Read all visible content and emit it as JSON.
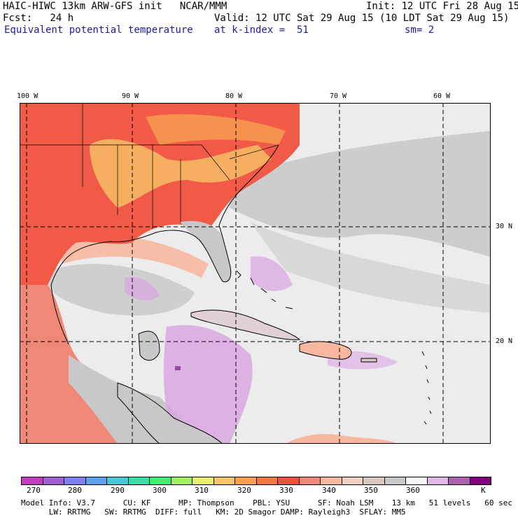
{
  "header": {
    "line1_left": "HAIC-HIWC 13km ARW-GFS init   NCAR/MMM",
    "line1_right": "Init: 12 UTC Fri 28 Aug 15",
    "line2_left": "Fcst:   24 h",
    "line2_right": "Valid: 12 UTC Sat 29 Aug 15 (10 LDT Sat 29 Aug 15)",
    "line3_left": "Equivalent potential temperature",
    "line3_mid": "at k-index =  51",
    "line3_right": "sm= 2"
  },
  "map": {
    "lon_labels": [
      "100 W",
      "90 W",
      "80 W",
      "70 W",
      "60 W"
    ],
    "lat_labels": [
      "30 N",
      "20 N"
    ],
    "colors": {
      "land_warm": "#f05a46",
      "land_hot": "#f8c468",
      "ocean": "#ececec",
      "ocean_gray": "#c8c8c8",
      "purple": "#d8a8e0",
      "dark_purple": "#9a48a8"
    }
  },
  "colorbar": {
    "colors": [
      "#c23cc2",
      "#a060d0",
      "#7f7fef",
      "#5fa0ef",
      "#47c8d8",
      "#38e0a8",
      "#40ef6f",
      "#a0f060",
      "#e8f070",
      "#f8c468",
      "#f8a050",
      "#f07840",
      "#ef503c",
      "#f08878",
      "#f8b8a0",
      "#f0d0c0",
      "#d8c8c0",
      "#c8c8c8",
      "#f8f8f8",
      "#e0b8e8",
      "#b060b0",
      "#800080"
    ],
    "ticks": [
      "270",
      "280",
      "290",
      "300",
      "310",
      "320",
      "330",
      "340",
      "350",
      "360",
      "K"
    ]
  },
  "footer": {
    "line1": "Model Info: V3.7      CU: KF      MP: Thompson    PBL: YSU      SF: Noah LSM    13 km   51 levels   60 sec",
    "line2": "      LW: RRTMG   SW: RRTMG  DIFF: full   KM: 2D Smagor DAMP: Rayleigh3  SFLAY: MM5"
  }
}
